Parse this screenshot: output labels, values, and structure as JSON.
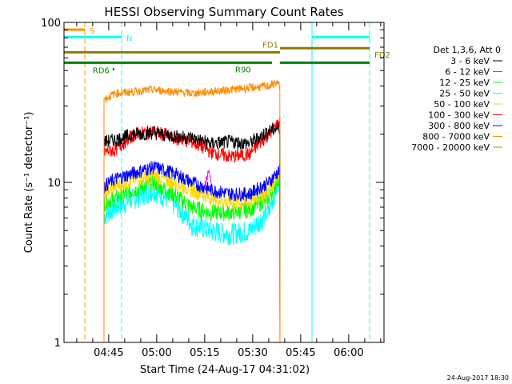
{
  "chart_data": {
    "type": "line",
    "title": "HESSI Observing Summary Count Rates",
    "xlabel": "Start Time (24-Aug-17 04:31:02)",
    "ylabel": "Count Rate (s⁻¹ detector⁻¹)",
    "y_scale": "log",
    "ylim": [
      1,
      100
    ],
    "y_ticks": [
      {
        "value": 1,
        "label": "1"
      },
      {
        "value": 10,
        "label": "10"
      },
      {
        "value": 100,
        "label": "100"
      }
    ],
    "x_range_minutes": [
      0,
      100
    ],
    "x_ticks": [
      {
        "minute": 13.97,
        "label": "04:45"
      },
      {
        "minute": 28.97,
        "label": "05:00"
      },
      {
        "minute": 43.97,
        "label": "05:15"
      },
      {
        "minute": 58.97,
        "label": "05:30"
      },
      {
        "minute": 73.97,
        "label": "05:45"
      },
      {
        "minute": 88.97,
        "label": "06:00"
      }
    ],
    "legend_title": "Det 1,3,6, Att 0",
    "series": [
      {
        "name": "3 - 6 keV",
        "color": "#000000",
        "key": "e3_6"
      },
      {
        "name": "6 - 12 keV",
        "color": "#ff00ff",
        "key": "e6_12"
      },
      {
        "name": "12 - 25 keV",
        "color": "#00ff00",
        "key": "e12_25"
      },
      {
        "name": "25 - 50 keV",
        "color": "#00ffff",
        "key": "e25_50"
      },
      {
        "name": "50 - 100 keV",
        "color": "#ffd700",
        "key": "e50_100"
      },
      {
        "name": "100 - 300 keV",
        "color": "#ff0000",
        "key": "e100_300"
      },
      {
        "name": "300 - 800 keV",
        "color": "#0000ff",
        "key": "e300_800"
      },
      {
        "name": "800 - 7000 keV",
        "color": "#ff8c00",
        "key": "e800_7000"
      },
      {
        "name": "7000 - 20000 keV",
        "color": "#b8860b",
        "key": "e7000_20000"
      }
    ],
    "curves": {
      "e800_7000": {
        "x": [
          12.5,
          16,
          22,
          28,
          34,
          40,
          46,
          52,
          58,
          64,
          66.5,
          67.5
        ],
        "y": [
          33,
          36,
          37,
          38,
          37,
          36,
          37,
          38,
          39,
          40,
          42,
          40
        ]
      },
      "e3_6": {
        "x": [
          12.5,
          16,
          22,
          28,
          34,
          40,
          46,
          52,
          58,
          64,
          67.5
        ],
        "y": [
          18,
          18.5,
          20,
          20.5,
          19.5,
          19,
          17.5,
          18,
          17.5,
          21,
          22
        ]
      },
      "e100_300": {
        "x": [
          12.5,
          16,
          22,
          28,
          34,
          40,
          46,
          52,
          58,
          64,
          67.5
        ],
        "y": [
          15.5,
          16,
          20,
          21,
          19,
          18,
          15.5,
          14.5,
          15,
          20,
          24
        ]
      },
      "e300_800": {
        "x": [
          12.5,
          16,
          22,
          28,
          34,
          40,
          46,
          52,
          58,
          64,
          67.5
        ],
        "y": [
          9.5,
          10.5,
          11.5,
          12.5,
          11.5,
          10,
          9,
          8.5,
          8.5,
          10,
          12
        ]
      },
      "e50_100": {
        "x": [
          12.5,
          16,
          22,
          28,
          34,
          40,
          46,
          52,
          58,
          64,
          67.5
        ],
        "y": [
          8.5,
          9.5,
          10.5,
          11,
          10,
          9,
          8,
          7.5,
          7.5,
          9,
          11.5
        ]
      },
      "e12_25": {
        "x": [
          12.5,
          16,
          22,
          28,
          34,
          40,
          46,
          52,
          58,
          64,
          67.5
        ],
        "y": [
          7.5,
          8,
          9,
          10,
          8.5,
          7,
          6.5,
          6.5,
          6.8,
          8,
          11
        ]
      },
      "e25_50": {
        "x": [
          12.5,
          16,
          22,
          28,
          34,
          40,
          46,
          52,
          58,
          64,
          67.5
        ],
        "y": [
          6.2,
          7,
          8,
          9,
          7.5,
          5.5,
          5,
          4.8,
          5,
          6.5,
          10.5
        ]
      },
      "e6_12": {
        "x": [
          44,
          45,
          46
        ],
        "y": [
          9.5,
          11.5,
          10
        ]
      }
    },
    "state_bars": [
      {
        "label": "S",
        "color": "#ff8c00",
        "x0": 0,
        "x1": 6.5,
        "y": 90
      },
      {
        "label": "N",
        "color": "#00ffff",
        "x0": 0,
        "x1": 18,
        "y": 81
      },
      {
        "label": "",
        "color": "#00ffff",
        "x0": 77.5,
        "x1": 95.5,
        "y": 81
      },
      {
        "label": "FD1",
        "color": "#8b7d00",
        "x0": 0,
        "x1": 67.5,
        "y": 65
      },
      {
        "label": "FD2",
        "color": "#8b7d00",
        "x0": 67.5,
        "x1": 95.5,
        "y": 69
      },
      {
        "label": "R90",
        "color": "#007f00",
        "x0": 0,
        "x1": 65,
        "y": 56
      },
      {
        "label": "",
        "color": "#007f00",
        "x0": 67.5,
        "x1": 95.5,
        "y": 56
      },
      {
        "label": "RD6",
        "color": "#007f00",
        "x0": 15.2,
        "x1": 15.7,
        "y": 51
      }
    ],
    "markers": [
      {
        "color": "#ff8c00",
        "x": 6.5,
        "style": "dashed"
      },
      {
        "color": "#00ffff",
        "x": 18,
        "style": "dashed"
      },
      {
        "color": "#00ffff",
        "x": 95.5,
        "style": "dashed"
      },
      {
        "color": "#00ffff",
        "x": 77.5,
        "style": "solid"
      },
      {
        "color": "#00ffff",
        "x": 0,
        "style": "solid"
      }
    ],
    "footer": "24-Aug-2017 18:30"
  }
}
